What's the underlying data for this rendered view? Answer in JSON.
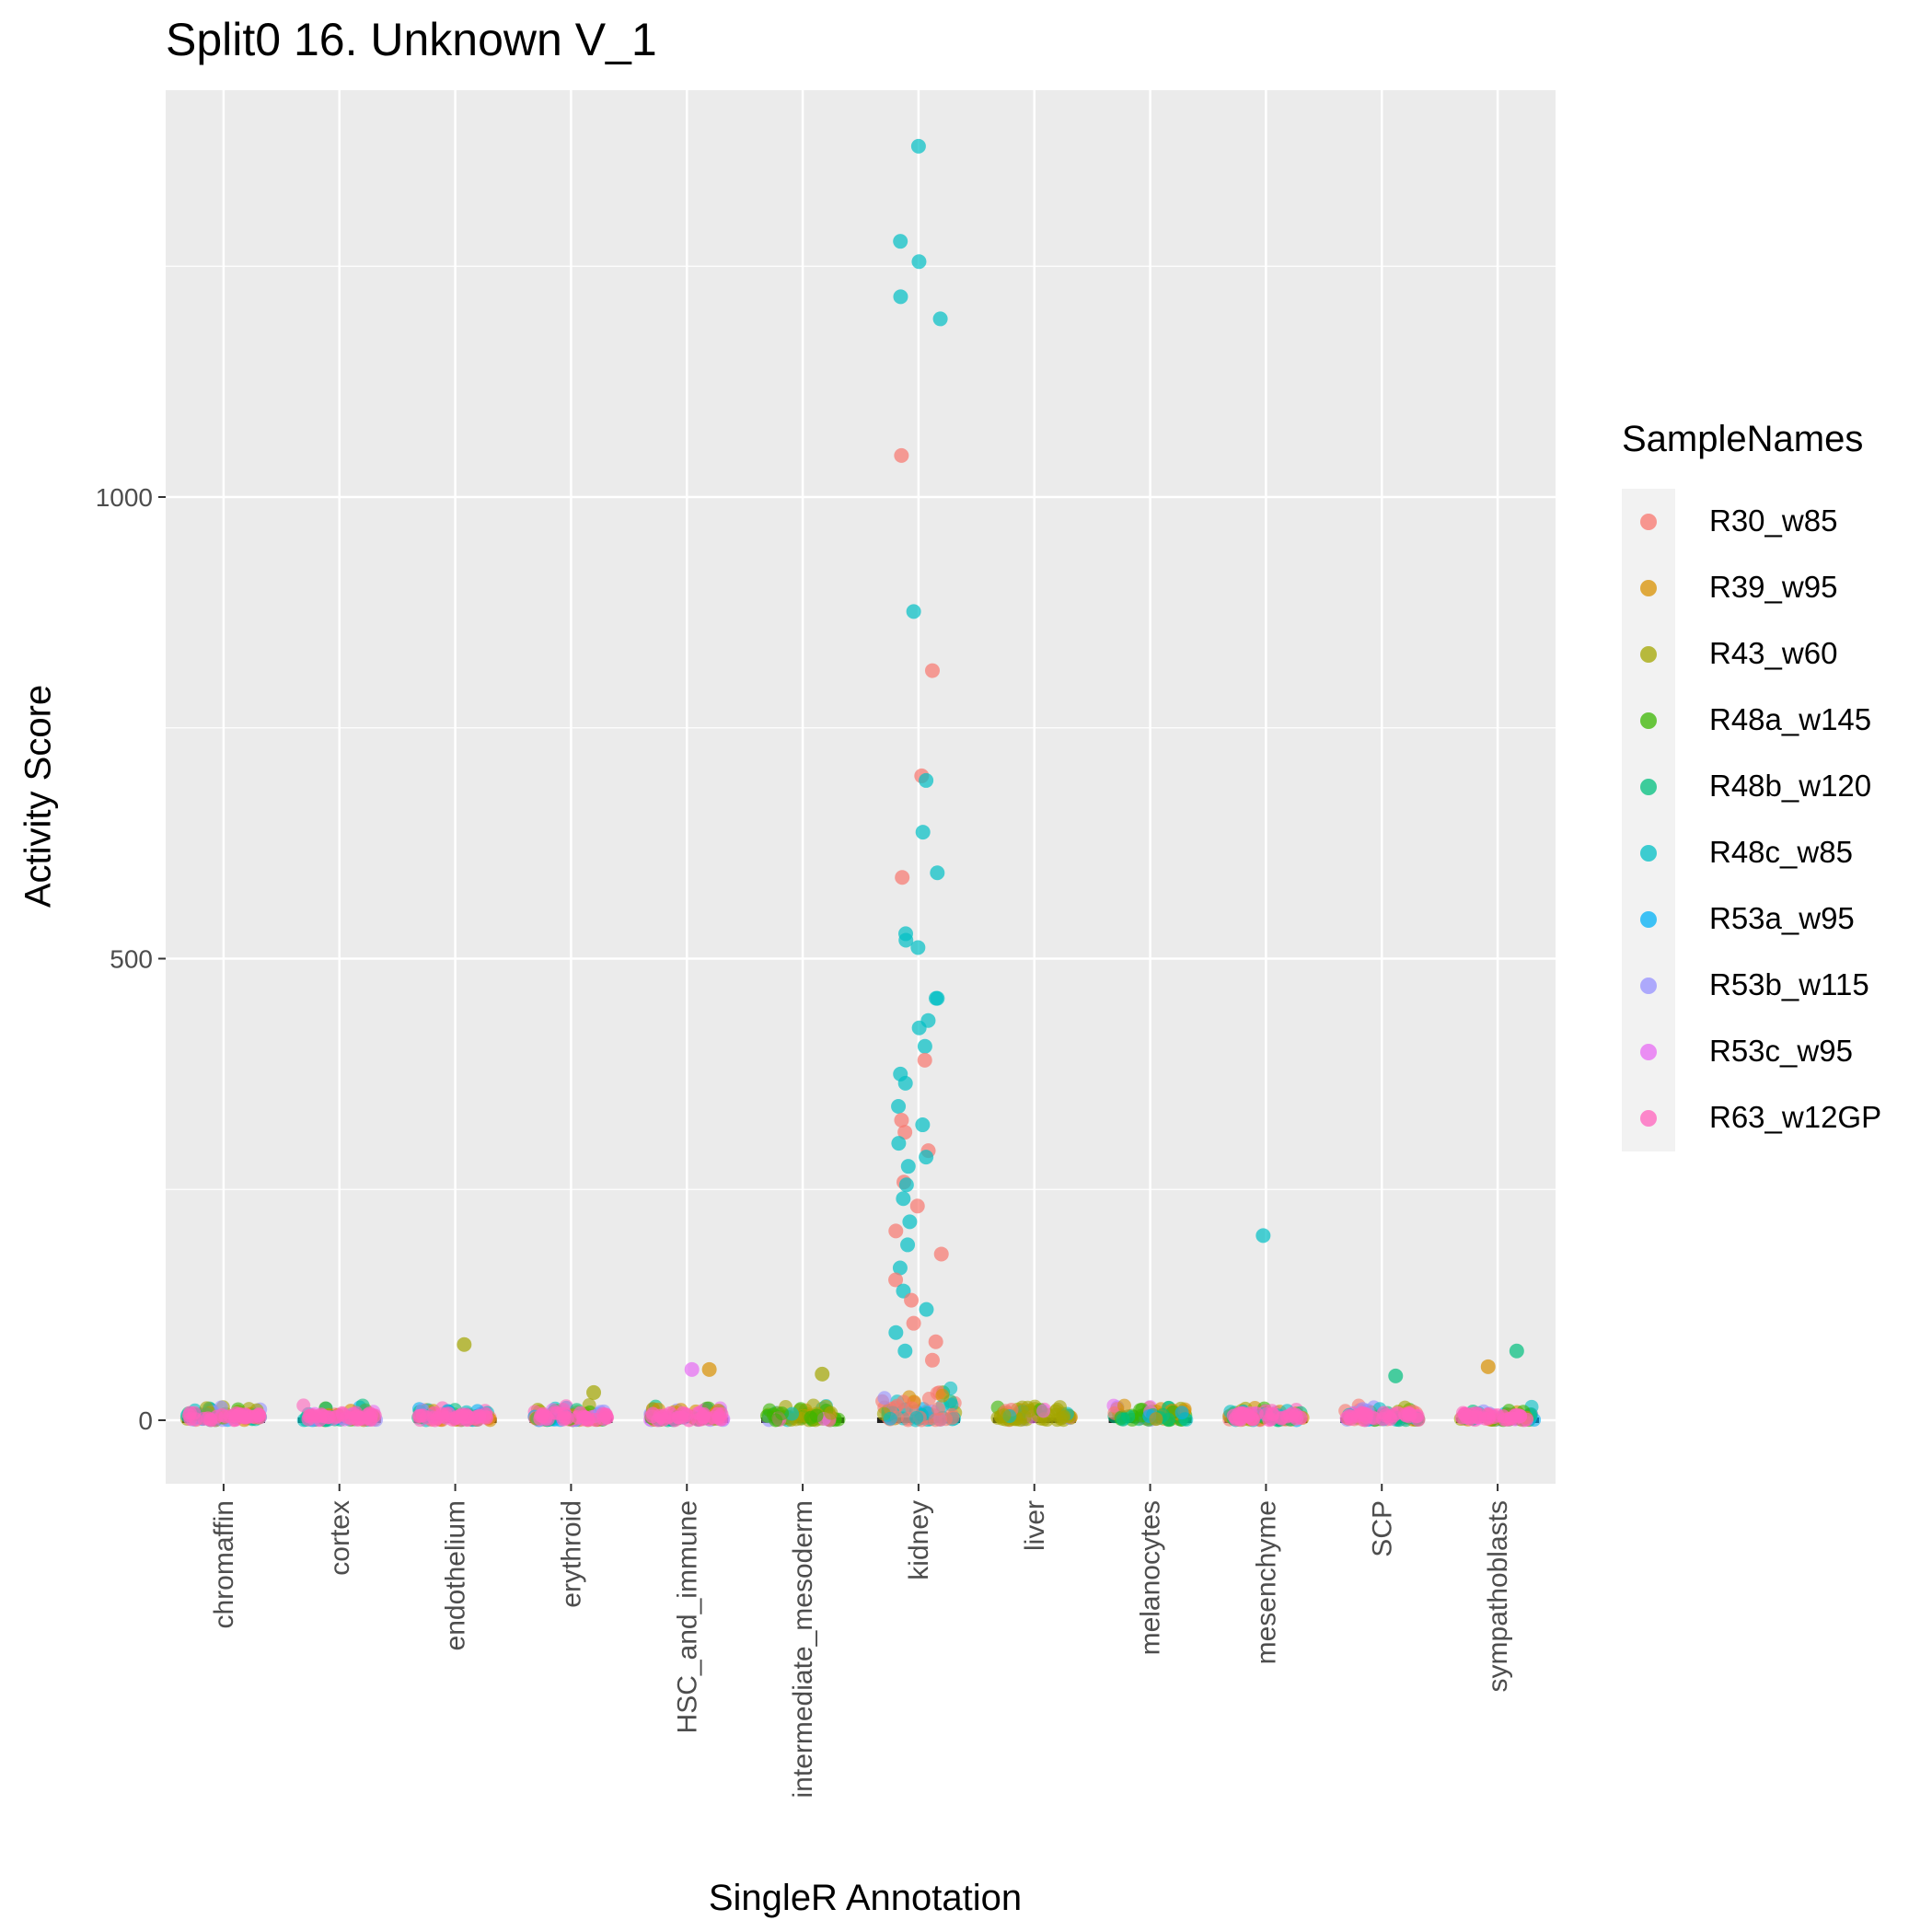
{
  "chart_data": {
    "type": "scatter",
    "title": "Split0 16. Unknown V_1",
    "xlabel": "SingleR Annotation",
    "ylabel": "Activity Score",
    "ylim": [
      -70,
      1450
    ],
    "yticks": [
      0,
      500,
      1000
    ],
    "grid": true,
    "categories": [
      "chromaffin",
      "cortex",
      "endothelium",
      "erythroid",
      "HSC_and_immune",
      "intermediate_mesoderm",
      "kidney",
      "liver",
      "melanocytes",
      "mesenchyme",
      "SCP",
      "sympathoblasts"
    ],
    "legend": {
      "title": "SampleNames",
      "placement": "right",
      "items": [
        "R30_w85",
        "R39_w95",
        "R43_w60",
        "R48a_w145",
        "R48b_w120",
        "R48c_w85",
        "R53a_w95",
        "R53b_w115",
        "R53c_w95",
        "R63_w12GP"
      ]
    },
    "colors": {
      "R30_w85": "#F8766D",
      "R39_w95": "#D89000",
      "R43_w60": "#A3A500",
      "R48a_w145": "#39B600",
      "R48b_w120": "#00BF7D",
      "R48c_w85": "#00BFC4",
      "R53a_w95": "#00B0F6",
      "R53b_w115": "#9590FF",
      "R53c_w95": "#E76BF3",
      "R63_w12GP": "#FF62BC"
    },
    "highlighted_points": [
      {
        "category": "kidney",
        "sample": "R48c_w85",
        "y": 1380
      },
      {
        "category": "kidney",
        "sample": "R48c_w85",
        "y": 1277
      },
      {
        "category": "kidney",
        "sample": "R48c_w85",
        "y": 1255
      },
      {
        "category": "kidney",
        "sample": "R48c_w85",
        "y": 1217
      },
      {
        "category": "kidney",
        "sample": "R48c_w85",
        "y": 1193
      },
      {
        "category": "kidney",
        "sample": "R30_w85",
        "y": 1045
      },
      {
        "category": "kidney",
        "sample": "R48c_w85",
        "y": 876
      },
      {
        "category": "kidney",
        "sample": "R30_w85",
        "y": 812
      },
      {
        "category": "kidney",
        "sample": "R30_w85",
        "y": 698
      },
      {
        "category": "kidney",
        "sample": "R48c_w85",
        "y": 693
      },
      {
        "category": "kidney",
        "sample": "R48c_w85",
        "y": 637
      },
      {
        "category": "kidney",
        "sample": "R48c_w85",
        "y": 593
      },
      {
        "category": "kidney",
        "sample": "R30_w85",
        "y": 588
      },
      {
        "category": "kidney",
        "sample": "R48c_w85",
        "y": 527
      },
      {
        "category": "kidney",
        "sample": "R48c_w85",
        "y": 520
      },
      {
        "category": "kidney",
        "sample": "R48c_w85",
        "y": 512
      },
      {
        "category": "kidney",
        "sample": "R48c_w85",
        "y": 457
      },
      {
        "category": "kidney",
        "sample": "R48c_w85",
        "y": 457
      },
      {
        "category": "kidney",
        "sample": "R48c_w85",
        "y": 433
      },
      {
        "category": "kidney",
        "sample": "R48c_w85",
        "y": 425
      },
      {
        "category": "kidney",
        "sample": "R48c_w85",
        "y": 405
      },
      {
        "category": "kidney",
        "sample": "R30_w85",
        "y": 390
      },
      {
        "category": "kidney",
        "sample": "R48c_w85",
        "y": 375
      },
      {
        "category": "kidney",
        "sample": "R48c_w85",
        "y": 365
      },
      {
        "category": "kidney",
        "sample": "R48c_w85",
        "y": 340
      },
      {
        "category": "kidney",
        "sample": "R30_w85",
        "y": 325
      },
      {
        "category": "kidney",
        "sample": "R48c_w85",
        "y": 320
      },
      {
        "category": "kidney",
        "sample": "R30_w85",
        "y": 312
      },
      {
        "category": "kidney",
        "sample": "R48c_w85",
        "y": 300
      },
      {
        "category": "kidney",
        "sample": "R30_w85",
        "y": 292
      },
      {
        "category": "kidney",
        "sample": "R48c_w85",
        "y": 285
      },
      {
        "category": "kidney",
        "sample": "R48c_w85",
        "y": 275
      },
      {
        "category": "kidney",
        "sample": "R30_w85",
        "y": 258
      },
      {
        "category": "kidney",
        "sample": "R48c_w85",
        "y": 255
      },
      {
        "category": "kidney",
        "sample": "R48c_w85",
        "y": 240
      },
      {
        "category": "kidney",
        "sample": "R30_w85",
        "y": 232
      },
      {
        "category": "kidney",
        "sample": "R48c_w85",
        "y": 215
      },
      {
        "category": "kidney",
        "sample": "R30_w85",
        "y": 205
      },
      {
        "category": "kidney",
        "sample": "R48c_w85",
        "y": 190
      },
      {
        "category": "kidney",
        "sample": "R30_w85",
        "y": 180
      },
      {
        "category": "kidney",
        "sample": "R48c_w85",
        "y": 165
      },
      {
        "category": "kidney",
        "sample": "R30_w85",
        "y": 152
      },
      {
        "category": "kidney",
        "sample": "R48c_w85",
        "y": 140
      },
      {
        "category": "kidney",
        "sample": "R30_w85",
        "y": 130
      },
      {
        "category": "kidney",
        "sample": "R48c_w85",
        "y": 120
      },
      {
        "category": "kidney",
        "sample": "R30_w85",
        "y": 105
      },
      {
        "category": "kidney",
        "sample": "R48c_w85",
        "y": 95
      },
      {
        "category": "kidney",
        "sample": "R30_w85",
        "y": 85
      },
      {
        "category": "kidney",
        "sample": "R48c_w85",
        "y": 75
      },
      {
        "category": "kidney",
        "sample": "R30_w85",
        "y": 65
      },
      {
        "category": "mesenchyme",
        "sample": "R48c_w85",
        "y": 200
      },
      {
        "category": "endothelium",
        "sample": "R43_w60",
        "y": 82
      },
      {
        "category": "sympathoblasts",
        "sample": "R48b_w120",
        "y": 75
      },
      {
        "category": "sympathoblasts",
        "sample": "R39_w95",
        "y": 58
      },
      {
        "category": "HSC_and_immune",
        "sample": "R53c_w95",
        "y": 55
      },
      {
        "category": "HSC_and_immune",
        "sample": "R39_w95",
        "y": 55
      },
      {
        "category": "intermediate_mesoderm",
        "sample": "R43_w60",
        "y": 50
      },
      {
        "category": "SCP",
        "sample": "R48b_w120",
        "y": 48
      },
      {
        "category": "erythroid",
        "sample": "R43_w60",
        "y": 30
      }
    ]
  }
}
